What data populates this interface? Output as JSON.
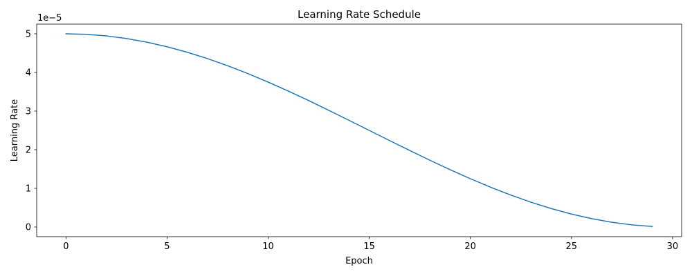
{
  "chart_data": {
    "type": "line",
    "title": "Learning Rate Schedule",
    "xlabel": "Epoch",
    "ylabel": "Learning Rate",
    "y_offset_label": "1e−5",
    "y_scale_factor": 1e-05,
    "xlim": [
      -1.45,
      30.45
    ],
    "ylim": [
      -2.5e-06,
      5.25e-05
    ],
    "x_ticks": [
      0,
      5,
      10,
      15,
      20,
      25,
      30
    ],
    "x_tick_labels": [
      "0",
      "5",
      "10",
      "15",
      "20",
      "25",
      "30"
    ],
    "y_ticks": [
      0,
      1e-05,
      2e-05,
      3e-05,
      4e-05,
      5e-05
    ],
    "y_tick_labels": [
      "0",
      "1",
      "2",
      "3",
      "4",
      "5"
    ],
    "grid": false,
    "legend": false,
    "series": [
      {
        "color": "#1f77b4",
        "x": [
          0,
          1,
          2,
          3,
          4,
          5,
          6,
          7,
          8,
          9,
          10,
          11,
          12,
          13,
          14,
          15,
          16,
          17,
          18,
          19,
          20,
          21,
          22,
          23,
          24,
          25,
          26,
          27,
          28,
          29
        ],
        "y": [
          5e-05,
          4.9863e-05,
          4.9454e-05,
          4.8776e-05,
          4.7839e-05,
          4.6651e-05,
          4.5225e-05,
          4.3579e-05,
          4.1728e-05,
          3.9695e-05,
          3.75e-05,
          3.5169e-05,
          3.2725e-05,
          3.0196e-05,
          2.7611e-05,
          2.5e-05,
          2.2389e-05,
          1.9804e-05,
          1.7275e-05,
          1.4831e-05,
          1.25e-05,
          1.0305e-05,
          8.272e-06,
          6.421e-06,
          4.775e-06,
          3.349e-06,
          2.161e-06,
          1.224e-06,
          5.46e-07,
          1.37e-07
        ]
      }
    ]
  }
}
